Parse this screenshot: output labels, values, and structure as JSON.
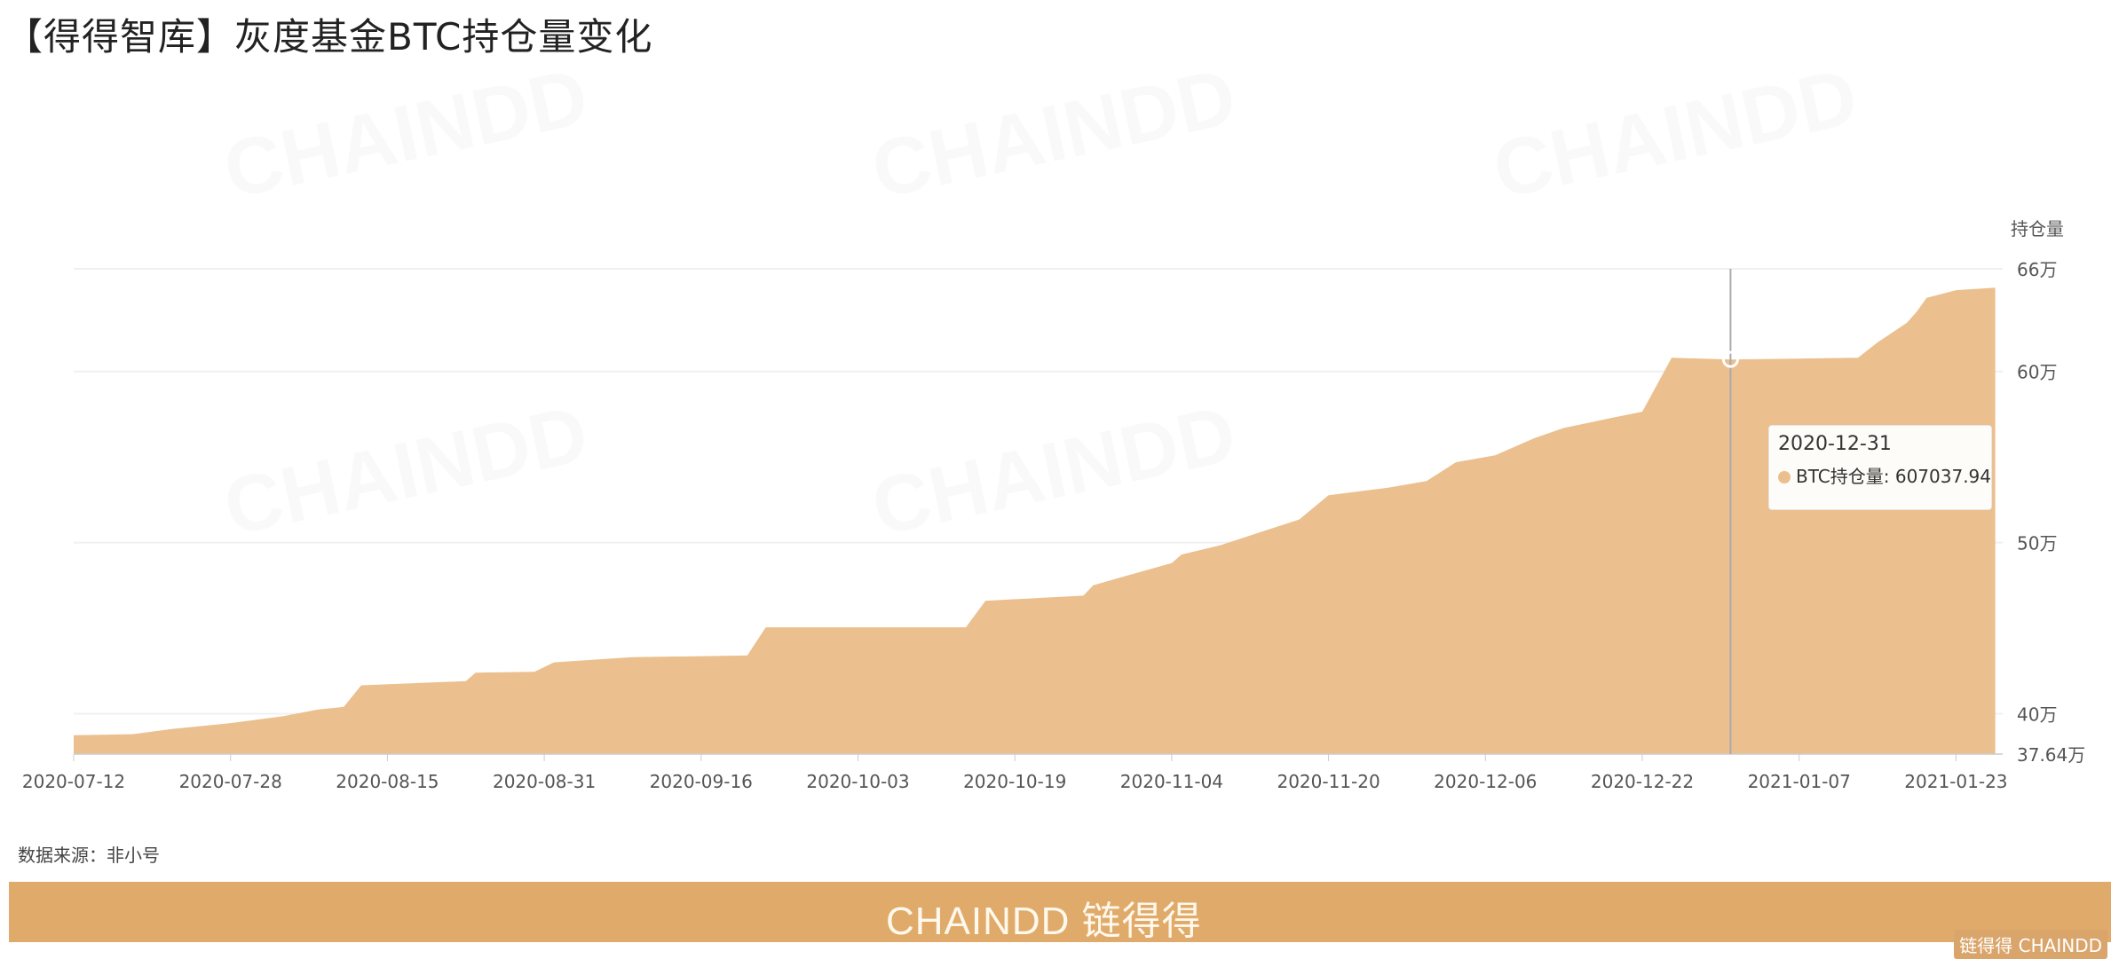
{
  "title": "【得得智库】灰度基金BTC持仓量变化",
  "source": "数据来源：非小号",
  "banner": {
    "brand": "CHAINDD 链得得",
    "corner_logo": "链得得 CHAINDD"
  },
  "watermark": "CHAINDD",
  "colors": {
    "area": "#ebbf8e",
    "banner": "#e0ab6a",
    "grid": "#f0f0f0",
    "crosshair": "#aaaaaa"
  },
  "tooltip": {
    "date": "2020-12-31",
    "series": "BTC持仓量",
    "value": "607037.94"
  },
  "chart_data": {
    "type": "area",
    "title": "",
    "ylabel": "持仓量",
    "y_unit": "万",
    "ylim": [
      376400,
      660000
    ],
    "y_ticks": [
      {
        "value": 660000,
        "label": "66万"
      },
      {
        "value": 600000,
        "label": "60万"
      },
      {
        "value": 500000,
        "label": "50万"
      },
      {
        "value": 400000,
        "label": "40万"
      },
      {
        "value": 376400,
        "label": "37.64万"
      }
    ],
    "x_ticks": [
      "2020-07-12",
      "2020-07-28",
      "2020-08-15",
      "2020-08-31",
      "2020-09-16",
      "2020-10-03",
      "2020-10-19",
      "2020-11-04",
      "2020-11-20",
      "2020-12-06",
      "2020-12-22",
      "2021-01-07",
      "2021-01-23"
    ],
    "grid": true,
    "y_axis_position": "right",
    "series": [
      {
        "name": "BTC持仓量",
        "points": [
          [
            "2020-07-12",
            387400
          ],
          [
            "2020-07-18",
            388000
          ],
          [
            "2020-07-22",
            391000
          ],
          [
            "2020-07-28",
            394500
          ],
          [
            "2020-08-03",
            398500
          ],
          [
            "2020-08-07",
            402400
          ],
          [
            "2020-08-10",
            404000
          ],
          [
            "2020-08-12",
            416600
          ],
          [
            "2020-08-23",
            419000
          ],
          [
            "2020-08-24",
            424000
          ],
          [
            "2020-08-30",
            424500
          ],
          [
            "2020-09-01",
            430000
          ],
          [
            "2020-09-09",
            433000
          ],
          [
            "2020-09-21",
            434000
          ],
          [
            "2020-09-23",
            450500
          ],
          [
            "2020-10-14",
            450500
          ],
          [
            "2020-10-16",
            466000
          ],
          [
            "2020-10-26",
            469000
          ],
          [
            "2020-10-27",
            475000
          ],
          [
            "2020-10-30",
            480000
          ],
          [
            "2020-11-04",
            488000
          ],
          [
            "2020-11-05",
            493000
          ],
          [
            "2020-11-09",
            498500
          ],
          [
            "2020-11-13",
            506000
          ],
          [
            "2020-11-17",
            513500
          ],
          [
            "2020-11-20",
            527700
          ],
          [
            "2020-11-26",
            532000
          ],
          [
            "2020-11-30",
            536000
          ],
          [
            "2020-12-03",
            547000
          ],
          [
            "2020-12-07",
            551000
          ],
          [
            "2020-12-11",
            561000
          ],
          [
            "2020-12-14",
            567000
          ],
          [
            "2020-12-19",
            573000
          ],
          [
            "2020-12-22",
            576500
          ],
          [
            "2020-12-25",
            608000
          ],
          [
            "2020-12-31",
            607037.94
          ],
          [
            "2021-01-13",
            608000
          ],
          [
            "2021-01-15",
            617000
          ],
          [
            "2021-01-18",
            628500
          ],
          [
            "2021-01-19",
            635000
          ],
          [
            "2021-01-20",
            643000
          ],
          [
            "2021-01-23",
            647500
          ],
          [
            "2021-01-27",
            649000
          ]
        ]
      }
    ],
    "highlight": {
      "date": "2020-12-31",
      "value": 607037.94
    }
  }
}
